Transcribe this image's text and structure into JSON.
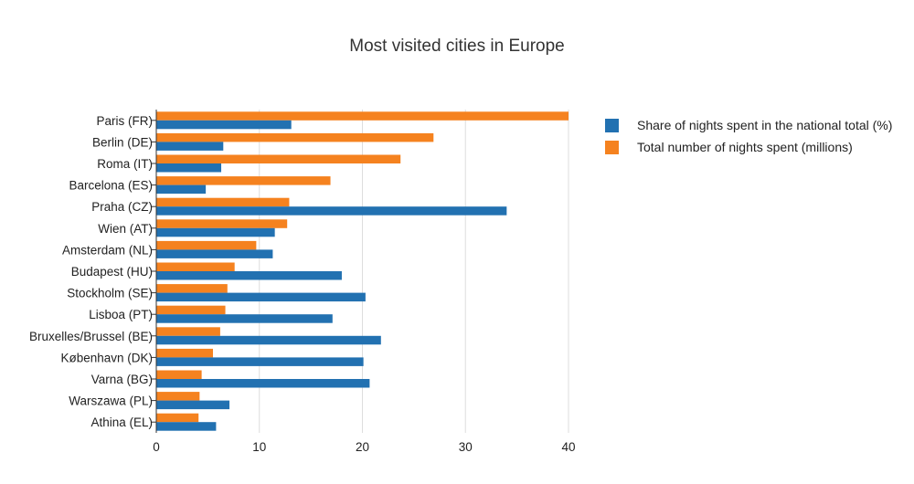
{
  "colors": {
    "share": "#2271b1",
    "total": "#f5821f",
    "grid": "#dddddd",
    "axis": "#333333"
  },
  "chart_data": {
    "type": "bar",
    "orientation": "horizontal",
    "title": "Most visited cities in Europe",
    "xlabel": "",
    "ylabel": "",
    "xlim": [
      0,
      40
    ],
    "xticks": [
      0,
      10,
      20,
      30,
      40
    ],
    "grid": true,
    "legend_position": "right",
    "categories": [
      "Paris (FR)",
      "Berlin (DE)",
      "Roma (IT)",
      "Barcelona (ES)",
      "Praha (CZ)",
      "Wien (AT)",
      "Amsterdam (NL)",
      "Budapest (HU)",
      "Stockholm (SE)",
      "Lisboa (PT)",
      "Bruxelles/Brussel (BE)",
      "København (DK)",
      "Varna (BG)",
      "Warszawa (PL)",
      "Athina (EL)"
    ],
    "series": [
      {
        "name": "Share of nights spent in the national total (%)",
        "color_key": "share",
        "values": [
          13.1,
          6.5,
          6.3,
          4.8,
          34.0,
          11.5,
          11.3,
          18.0,
          20.3,
          17.1,
          21.8,
          20.1,
          20.7,
          7.1,
          5.8
        ]
      },
      {
        "name": "Total number of nights spent (millions)",
        "color_key": "total",
        "values": [
          40.0,
          26.9,
          23.7,
          16.9,
          12.9,
          12.7,
          9.7,
          7.6,
          6.9,
          6.7,
          6.2,
          5.5,
          4.4,
          4.2,
          4.1
        ]
      }
    ]
  }
}
